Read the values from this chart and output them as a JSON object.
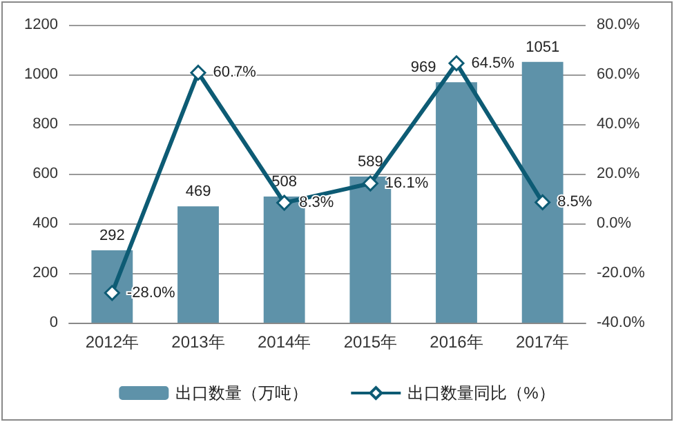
{
  "chart_data": {
    "type": "bar",
    "categories": [
      "2012年",
      "2013年",
      "2014年",
      "2015年",
      "2016年",
      "2017年"
    ],
    "series": [
      {
        "name": "出口数量（万吨）",
        "color": "#5e92a9",
        "values": [
          292,
          469,
          508,
          589,
          969,
          1051
        ]
      },
      {
        "name": "出口数量同比（%）",
        "type": "line",
        "axis": "y2",
        "color": "#0d5b74",
        "values": [
          -28.0,
          60.7,
          8.3,
          16.1,
          64.5,
          8.5
        ],
        "value_labels": [
          "-28.0%",
          "60.7%",
          "8.3%",
          "16.1%",
          "64.5%",
          "8.5%"
        ]
      }
    ],
    "data_labels": true,
    "ylim": [
      0,
      1200
    ],
    "yticks": [
      0,
      200,
      400,
      600,
      800,
      1000,
      1200
    ],
    "y2lim": [
      -40,
      80
    ],
    "y2ticks": [
      {
        "value": -40,
        "label": "-40.0%"
      },
      {
        "value": -20,
        "label": "-20.0%"
      },
      {
        "value": 0,
        "label": "0.0%"
      },
      {
        "value": 20,
        "label": "20.0%"
      },
      {
        "value": 40,
        "label": "40.0%"
      },
      {
        "value": 60,
        "label": "60.0%"
      },
      {
        "value": 80,
        "label": "80.0%"
      }
    ],
    "grid": "y",
    "legend": "bottom",
    "marker": "diamond",
    "line_style": "solid"
  }
}
